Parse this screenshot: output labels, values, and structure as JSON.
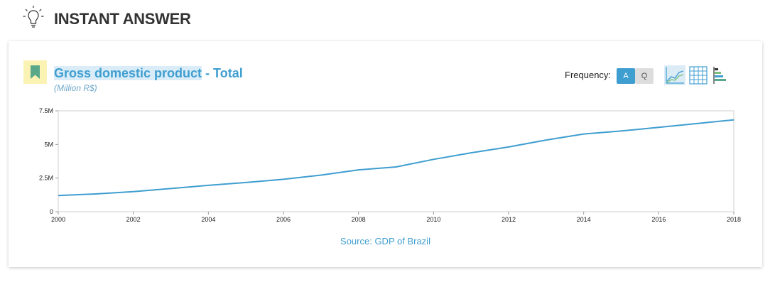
{
  "header": {
    "title": "INSTANT ANSWER",
    "icon": "lightbulb-icon"
  },
  "card": {
    "bookmark_icon": "bookmark-icon",
    "series_title_main": "Gross domestic product",
    "series_title_rest": " - Total",
    "unit": "(Million R$)",
    "frequency_label": "Frequency:",
    "frequency_options": [
      "A",
      "Q"
    ],
    "frequency_selected": "A",
    "view_icons": [
      "line-chart-icon",
      "table-view-icon",
      "bar-chart-icon"
    ],
    "source": "Source: GDP of Brazil"
  },
  "colors": {
    "accent": "#3f9ed0",
    "highlight": "#fbf3b3"
  },
  "chart_data": {
    "type": "line",
    "title": "",
    "xlabel": "",
    "ylabel": "",
    "x": [
      2000,
      2001,
      2002,
      2003,
      2004,
      2005,
      2006,
      2007,
      2008,
      2009,
      2010,
      2011,
      2012,
      2013,
      2014,
      2015,
      2016,
      2017,
      2018
    ],
    "series": [
      {
        "values": [
          1200000,
          1320000,
          1490000,
          1720000,
          1960000,
          2170000,
          2410000,
          2720000,
          3110000,
          3330000,
          3890000,
          4380000,
          4810000,
          5330000,
          5780000,
          6000000,
          6270000,
          6550000,
          6830000
        ]
      }
    ],
    "xlim": [
      2000,
      2018
    ],
    "ylim": [
      0,
      7500000
    ],
    "x_ticks": [
      2000,
      2002,
      2004,
      2006,
      2008,
      2010,
      2012,
      2014,
      2016,
      2018
    ],
    "y_ticks": [
      0,
      2500000,
      5000000,
      7500000
    ],
    "y_tick_labels": [
      "0",
      "2.5M",
      "5M",
      "7.5M"
    ],
    "grid": false,
    "line_color": "#3f9ed0"
  }
}
